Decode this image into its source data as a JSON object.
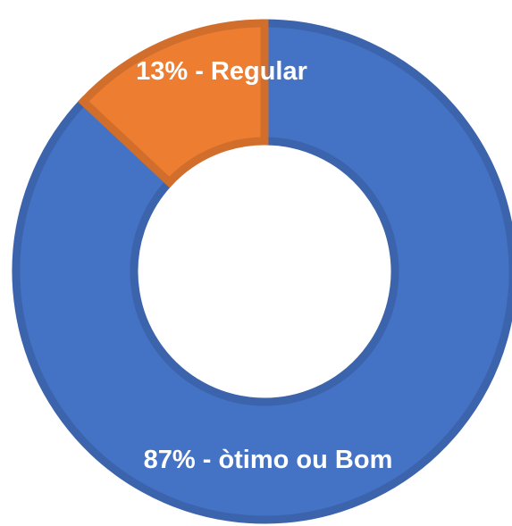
{
  "chart_data": {
    "type": "donut",
    "categories": [
      "òtimo ou Bom",
      "Regular"
    ],
    "values": [
      87,
      13
    ],
    "value_labels": [
      "87% - òtimo ou Bom",
      "13% - Regular"
    ],
    "colors": [
      "#4472c4",
      "#ed7d31"
    ]
  }
}
